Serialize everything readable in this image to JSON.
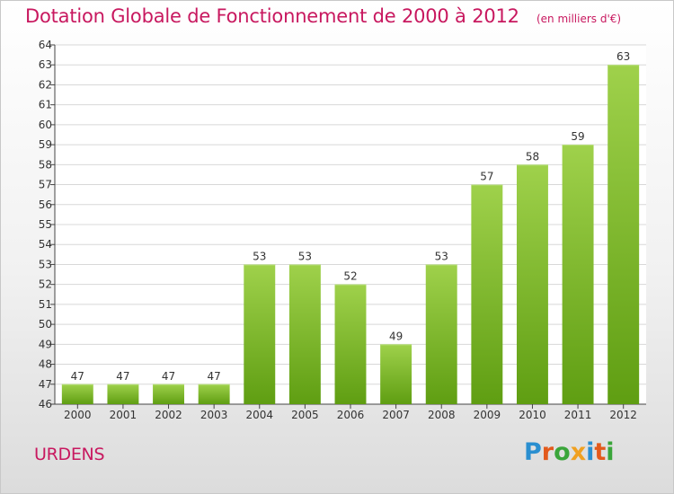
{
  "title": "Dotation Globale de Fonctionnement de 2000 à 2012",
  "unit_label": "(en milliers d'€)",
  "commune": "URDENS",
  "logo": {
    "text": "Proxiti",
    "letters": [
      "P",
      "r",
      "o",
      "x",
      "i",
      "t",
      "i"
    ],
    "colors": [
      "#2a8fd0",
      "#e35a1c",
      "#3aa53a",
      "#f0a020",
      "#2a8fd0",
      "#e35a1c",
      "#3aa53a"
    ]
  },
  "colors": {
    "title": "#c8185f",
    "bar_top": "#9fd14b",
    "bar_bottom": "#5f9e12",
    "grid": "#d8d8d8"
  },
  "chart_data": {
    "type": "bar",
    "title": "Dotation Globale de Fonctionnement de 2000 à 2012",
    "xlabel": "",
    "ylabel": "",
    "categories": [
      "2000",
      "2001",
      "2002",
      "2003",
      "2004",
      "2005",
      "2006",
      "2007",
      "2008",
      "2009",
      "2010",
      "2011",
      "2012"
    ],
    "values": [
      47,
      47,
      47,
      47,
      53,
      53,
      52,
      49,
      53,
      57,
      58,
      59,
      63
    ],
    "ylim": [
      46,
      64
    ],
    "yticks": [
      46,
      47,
      48,
      49,
      50,
      51,
      52,
      53,
      54,
      55,
      56,
      57,
      58,
      59,
      60,
      61,
      62,
      63,
      64
    ],
    "grid": true
  }
}
